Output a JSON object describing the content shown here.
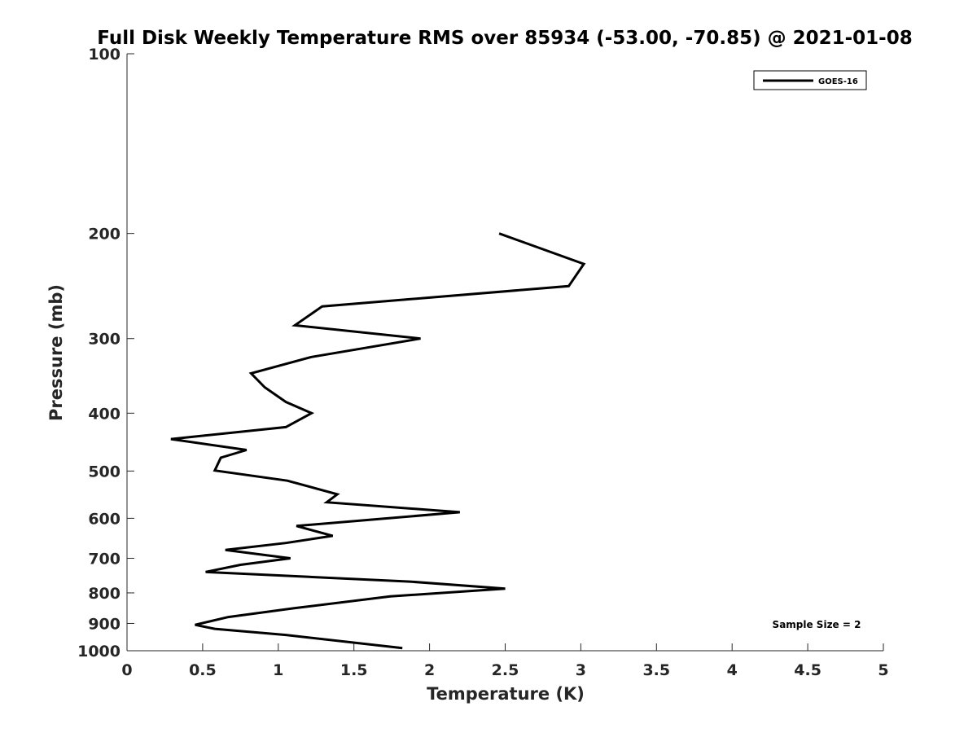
{
  "chart_data": {
    "type": "line",
    "title": "Full Disk Weekly Temperature RMS over 85934 (-53.00, -70.85) @ 2021-01-08",
    "xlabel": "Temperature (K)",
    "ylabel": "Pressure (mb)",
    "xlim": [
      0,
      5
    ],
    "ylim": [
      100,
      1000
    ],
    "y_scale": "log",
    "y_reversed": true,
    "x_ticks": [
      "0",
      "0.5",
      "1",
      "1.5",
      "2",
      "2.5",
      "3",
      "3.5",
      "4",
      "4.5",
      "5"
    ],
    "x_tick_values": [
      0,
      0.5,
      1,
      1.5,
      2,
      2.5,
      3,
      3.5,
      4,
      4.5,
      5
    ],
    "y_ticks": [
      "100",
      "200",
      "300",
      "400",
      "500",
      "600",
      "700",
      "800",
      "900",
      "1000"
    ],
    "y_tick_values": [
      100,
      200,
      300,
      400,
      500,
      600,
      700,
      800,
      900,
      1000
    ],
    "grid": false,
    "legend_position": "top-right",
    "series": [
      {
        "name": "GOES-16",
        "color": "#000000",
        "x": [
          2.46,
          3.02,
          2.92,
          1.29,
          1.11,
          1.94,
          1.22,
          0.82,
          0.91,
          1.05,
          1.22,
          1.05,
          0.29,
          0.79,
          0.62,
          0.58,
          1.06,
          1.39,
          1.32,
          2.2,
          1.12,
          1.36,
          1.05,
          0.65,
          1.08,
          0.75,
          0.52,
          1.87,
          2.5,
          1.74,
          1.1,
          0.67,
          0.45,
          0.58,
          1.05,
          1.82
        ],
        "y": [
          200,
          225,
          245,
          265,
          285,
          300,
          322,
          343,
          362,
          383,
          400,
          422,
          442,
          461,
          475,
          499,
          519,
          547,
          564,
          586,
          618,
          642,
          660,
          678,
          700,
          718,
          738,
          766,
          787,
          811,
          849,
          878,
          905,
          919,
          941,
          990
        ]
      }
    ],
    "annotations": [
      "Sample Size = 2"
    ]
  }
}
